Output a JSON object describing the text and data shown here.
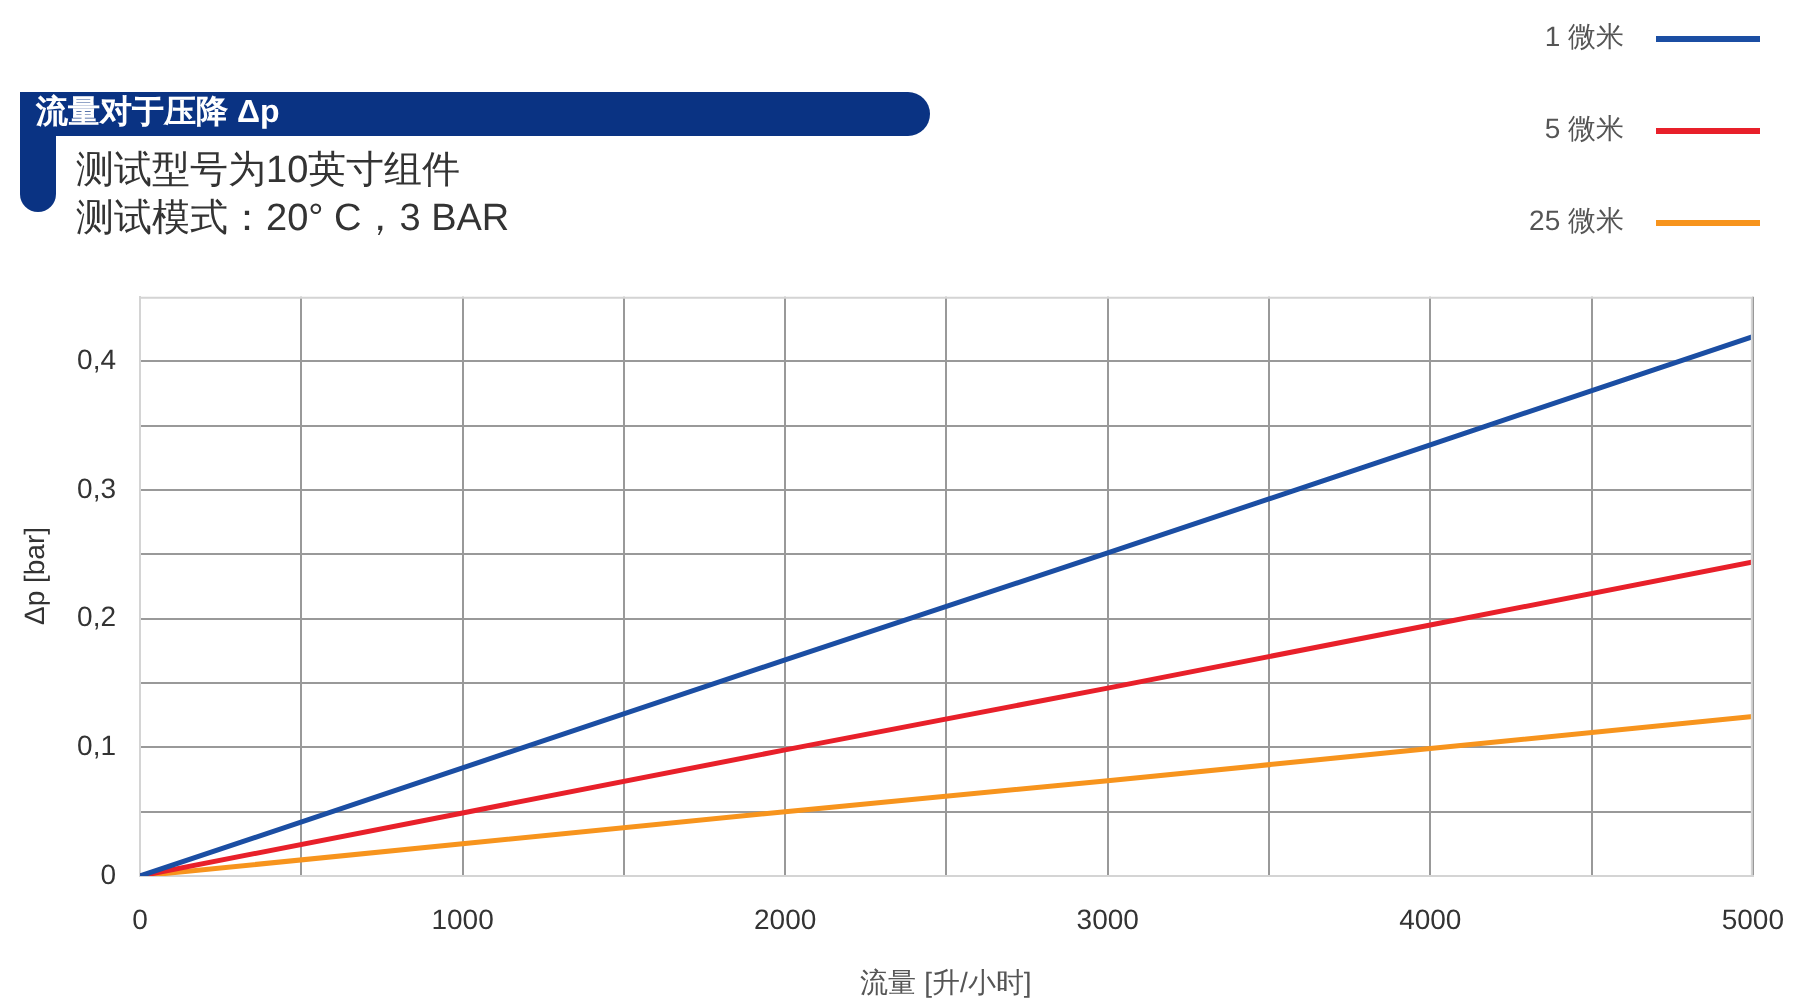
{
  "chart_data": {
    "type": "line",
    "title": "流量对于压降 Δp",
    "subtitle": "测试型号为10英寸组件",
    "annotations": [
      "测试模式：20° C，3 BAR"
    ],
    "xlabel": "流量 [升/小时]",
    "ylabel": "Δp [bar]",
    "x": [
      0,
      1000,
      2000,
      3000,
      4000,
      5000
    ],
    "series": [
      {
        "name": "1 微米",
        "color": "#1b4ea3",
        "values": [
          0,
          0.084,
          0.168,
          0.251,
          0.335,
          0.419
        ]
      },
      {
        "name": "5 微米",
        "color": "#e8202a",
        "values": [
          0,
          0.049,
          0.098,
          0.146,
          0.195,
          0.244
        ]
      },
      {
        "name": "25 微米",
        "color": "#f7941d",
        "values": [
          0,
          0.025,
          0.05,
          0.074,
          0.099,
          0.124
        ]
      }
    ],
    "xlim": [
      0,
      5000
    ],
    "xticks": [
      0,
      {
        "value": 500,
        "label": null
      },
      1000,
      {
        "value": 1500,
        "label": null
      },
      2000,
      {
        "value": 2500,
        "label": null
      },
      3000,
      {
        "value": 3500,
        "label": null
      },
      4000,
      {
        "value": 4500,
        "label": null
      },
      5000
    ],
    "ylim": [
      0,
      0.45
    ],
    "yticks": [
      0,
      {
        "value": 0.05,
        "label": null
      },
      {
        "value": 0.1,
        "label": "0,1"
      },
      {
        "value": 0.15,
        "label": null
      },
      {
        "value": 0.2,
        "label": "0,2"
      },
      {
        "value": 0.25,
        "label": null
      },
      {
        "value": 0.3,
        "label": "0,3"
      },
      {
        "value": 0.35,
        "label": null
      },
      {
        "value": 0.4,
        "label": "0,4"
      }
    ],
    "grid": true,
    "legend": "top right",
    "marker": "none",
    "line_style": "solid"
  }
}
